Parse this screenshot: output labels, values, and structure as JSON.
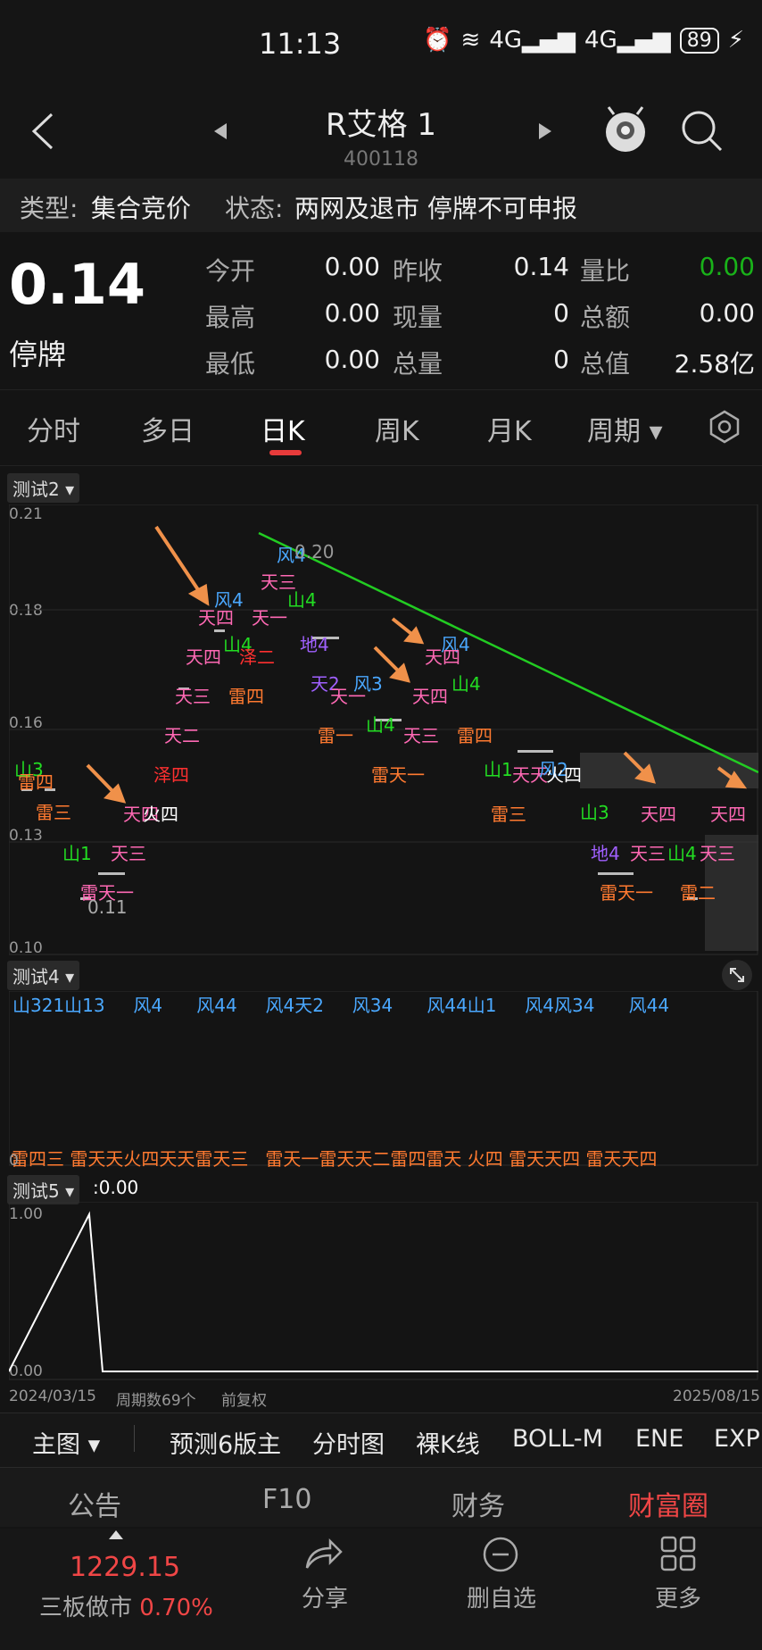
{
  "status": {
    "time": "11:13",
    "signal1": "4G",
    "signal2": "4G",
    "battery": "89"
  },
  "header": {
    "name": "R艾格 1",
    "code": "400118"
  },
  "info": {
    "type_label": "类型:",
    "type_value": "集合竞价",
    "state_label": "状态:",
    "state_value": "两网及退市 停牌不可申报"
  },
  "quote": {
    "price": "0.14",
    "halt": "停牌",
    "rows": [
      {
        "l1": "今开",
        "v1": "0.00",
        "l2": "昨收",
        "v2": "0.14",
        "l3": "量比",
        "v3": "0.00"
      },
      {
        "l1": "最高",
        "v1": "0.00",
        "l2": "现量",
        "v2": "0",
        "l3": "总额",
        "v3": "0.00"
      },
      {
        "l1": "最低",
        "v1": "0.00",
        "l2": "总量",
        "v2": "0",
        "l3": "总值",
        "v3": "2.58亿"
      }
    ]
  },
  "tabs": [
    "分时",
    "多日",
    "日K",
    "周K",
    "月K",
    "周期"
  ],
  "panel1": {
    "label": "测试2",
    "y_ticks": [
      "0.21",
      "0.18",
      "0.16",
      "0.13",
      "0.10"
    ],
    "peak_label": "0.20",
    "low_label": "0.11"
  },
  "panel2": {
    "label": "测试4",
    "zero": "0"
  },
  "panel3": {
    "label": "测试5",
    "value": ":0.00",
    "y_top": "1.00",
    "y_bottom": "0.00"
  },
  "bottom_axis": {
    "start": "2024/03/15",
    "period": "周期数69个",
    "adjust": "前复权",
    "end": "2025/08/15"
  },
  "indicators": [
    "主图",
    "预测6版主",
    "分时图",
    "裸K线",
    "BOLL-M",
    "ENE",
    "EXPI"
  ],
  "sections": [
    "公告",
    "F10",
    "财务",
    "财富圈"
  ],
  "bottom": {
    "index_value": "1229.15",
    "index_name": "三板做市",
    "index_pct": "0.70%",
    "share": "分享",
    "remove": "删自选",
    "more": "更多"
  },
  "chart_data": {
    "type": "line",
    "title": "",
    "y_range": [
      0.1,
      0.21
    ],
    "x_range": [
      "2024/03/15",
      "2025/08/15"
    ],
    "y_ticks": [
      0.21,
      0.18,
      0.16,
      0.13,
      0.1
    ],
    "annotations": [
      "天四",
      "天三",
      "天二",
      "天一",
      "风4",
      "山4",
      "地4",
      "泽二",
      "雷四",
      "雷三",
      "雷一",
      "山1",
      "山3",
      "风3",
      "风2",
      "泽四",
      "雷二",
      "火四",
      "天2"
    ],
    "colors": {
      "trendline": "#22cc22",
      "arrow": "#f0914a"
    },
    "series": [
      {
        "name": "测试5",
        "values": [
          0,
          1.0,
          0,
          0,
          0,
          0,
          0,
          0,
          0,
          0
        ]
      }
    ]
  }
}
